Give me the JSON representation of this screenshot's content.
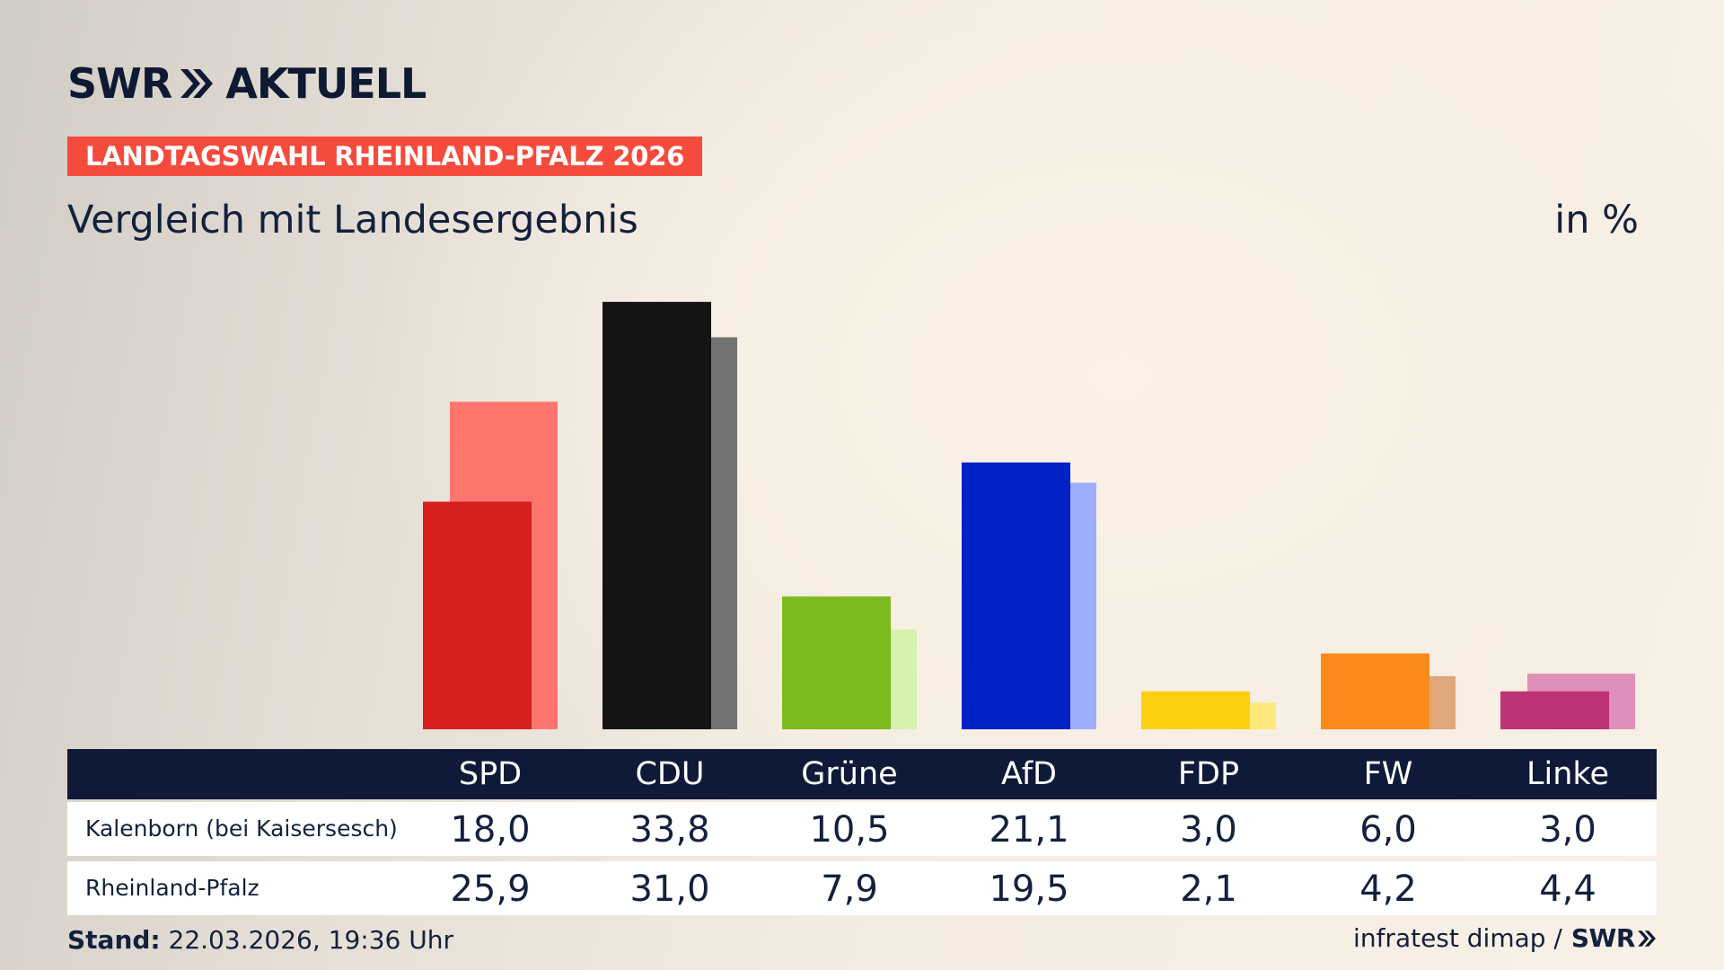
{
  "brand": {
    "name_left": "SWR",
    "name_right": "AKTUELL"
  },
  "tag": "LANDTAGSWAHL RHEINLAND-PFALZ 2026",
  "title": "Vergleich mit Landesergebnis",
  "unit": "in %",
  "chart_data": {
    "type": "bar",
    "categories": [
      "SPD",
      "CDU",
      "Grüne",
      "AfD",
      "FDP",
      "FW",
      "Linke"
    ],
    "series": [
      {
        "name": "Kalenborn (bei Kaisersesch)",
        "values": [
          18.0,
          33.8,
          10.5,
          21.1,
          3.0,
          6.0,
          3.0
        ]
      },
      {
        "name": "Rheinland-Pfalz",
        "values": [
          25.9,
          31.0,
          7.9,
          19.5,
          2.1,
          4.2,
          4.4
        ]
      }
    ],
    "display": {
      "Kalenborn (bei Kaisersesch)": [
        "18,0",
        "33,8",
        "10,5",
        "21,1",
        "3,0",
        "6,0",
        "3,0"
      ],
      "Rheinland-Pfalz": [
        "25,9",
        "31,0",
        "7,9",
        "19,5",
        "2,1",
        "4,2",
        "4,4"
      ]
    },
    "colors_local": [
      "#d81f20",
      "#141414",
      "#7aba1f",
      "#0022c7",
      "#fecf0f",
      "#fa8a1a",
      "#bd3375"
    ],
    "colors_state": [
      "#ff756e",
      "#727272",
      "#d5f3ac",
      "#9eaeff",
      "#fde87c",
      "#dea87a",
      "#e08fba"
    ],
    "ylim": [
      0,
      35
    ]
  },
  "footer": {
    "stand_label": "Stand:",
    "stand_value": "22.03.2026, 19:36 Uhr",
    "source": "infratest dimap /",
    "source_brand": "SWR"
  }
}
